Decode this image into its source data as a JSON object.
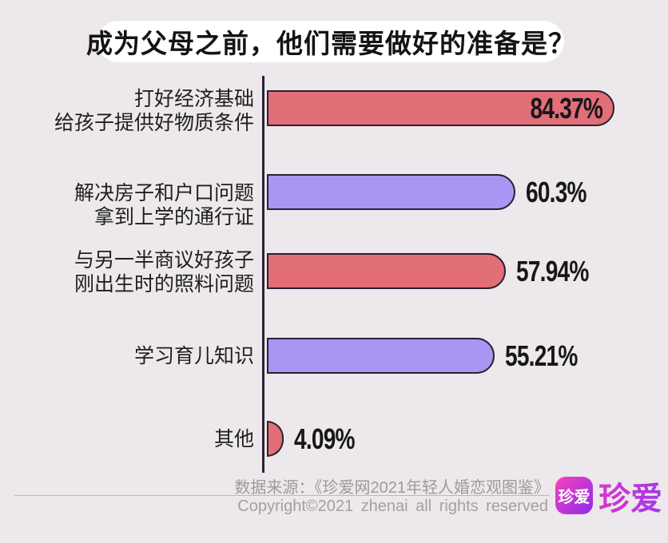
{
  "title": "成为父母之前，他们需要做好的准备是？",
  "chart_data": {
    "type": "bar",
    "orientation": "horizontal",
    "title": "成为父母之前，他们需要做好的准备是？",
    "unit": "%",
    "xlim": [
      0,
      100
    ],
    "grid": false,
    "legend": false,
    "categories": [
      "打好经济基础 给孩子提供好物质条件",
      "解决房子和户口问题 拿到上学的通行证",
      "与另一半商议好孩子 刚出生时的照料问题",
      "学习育儿知识",
      "其他"
    ],
    "values": [
      84.37,
      60.3,
      57.94,
      55.21,
      4.09
    ],
    "rows": [
      {
        "label_lines": [
          "打好经济基础",
          "给孩子提供好物质条件"
        ],
        "value": 84.37,
        "value_label": "84.37%",
        "color": "red",
        "value_inside": true
      },
      {
        "label_lines": [
          "解决房子和户口问题",
          "拿到上学的通行证"
        ],
        "value": 60.3,
        "value_label": "60.3%",
        "color": "purple",
        "value_inside": false
      },
      {
        "label_lines": [
          "与另一半商议好孩子",
          "刚出生时的照料问题"
        ],
        "value": 57.94,
        "value_label": "57.94%",
        "color": "red",
        "value_inside": false
      },
      {
        "label_lines": [
          "学习育儿知识"
        ],
        "value": 55.21,
        "value_label": "55.21%",
        "color": "purple",
        "value_inside": false
      },
      {
        "label_lines": [
          "其他"
        ],
        "value": 4.09,
        "value_label": "4.09%",
        "color": "red",
        "value_inside": false
      }
    ]
  },
  "colors": {
    "background": "#ECE8EB",
    "title_pill": "#FFFFFF",
    "title_text": "#141416",
    "red": "#E26E78",
    "purple": "#AA96F2",
    "bar_border": "#2B2133",
    "axis": "#2B2133",
    "label_text": "#1E1E20",
    "value_text": "#17171A",
    "footer_text": "#9D9A9D",
    "logo_gradient_start": "#F743BB",
    "logo_gradient_end": "#8E2BEF"
  },
  "footer": {
    "source": "数据来源：《珍爱网2021年轻人婚恋观图鉴》",
    "copyright": "Copyright©2021 zhenai all rights reserved",
    "logo_icon_text": "珍爱",
    "logo_wordmark": "珍爱"
  }
}
